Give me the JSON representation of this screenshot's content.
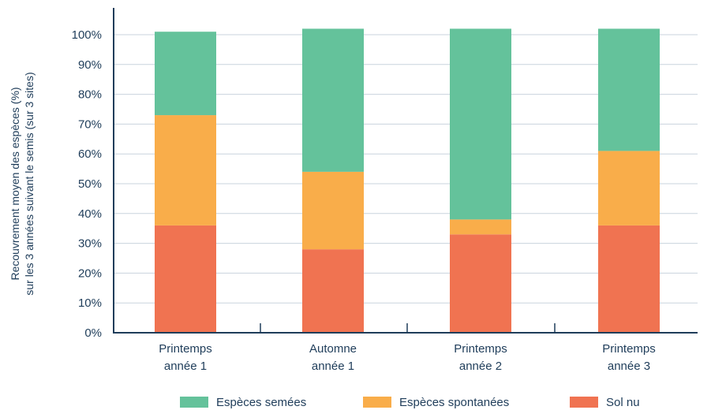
{
  "chart_data": {
    "type": "bar",
    "stacked": true,
    "categories": [
      [
        "Printemps",
        "année 1"
      ],
      [
        "Automne",
        "année 1"
      ],
      [
        "Printemps",
        "année 2"
      ],
      [
        "Printemps",
        "année 3"
      ]
    ],
    "series": [
      {
        "name": "Sol nu",
        "color": "#f07351",
        "values": [
          36,
          28,
          33,
          36
        ]
      },
      {
        "name": "Espèces spontanées",
        "color": "#f9ad4a",
        "values": [
          37,
          26,
          5,
          25
        ]
      },
      {
        "name": "Espèces semées",
        "color": "#64c29b",
        "values": [
          28,
          48,
          64,
          41
        ]
      }
    ],
    "ylabel": [
      "Recouvrement moyen des espèces (%)",
      "sur les 3 années suivant le semis (sur 3 sites)"
    ],
    "ylim": [
      0,
      100
    ],
    "yticks": [
      "0%",
      "10%",
      "20%",
      "30%",
      "40%",
      "50%",
      "60%",
      "70%",
      "80%",
      "90%",
      "100%"
    ],
    "legend_order": [
      "Espèces semées",
      "Espèces spontanées",
      "Sol nu"
    ],
    "legend_position": "bottom",
    "grid": true,
    "colors": {
      "axis": "#1f3d5a",
      "grid": "#c9d3dd"
    }
  }
}
